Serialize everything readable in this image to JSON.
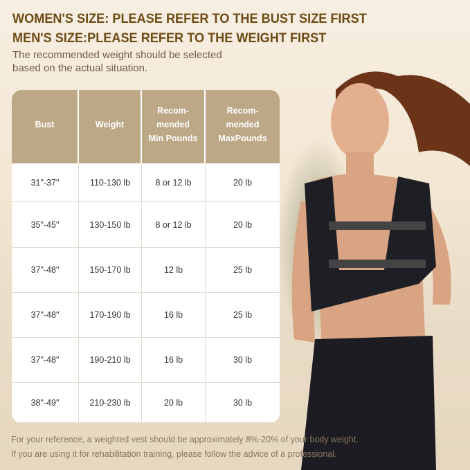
{
  "heading": {
    "line1": "WOMEN'S SIZE: PLEASE REFER TO THE BUST SIZE FIRST",
    "line2": "MEN'S SIZE:PLEASE REFER TO THE WEIGHT FIRST",
    "subtitle": "The recommended weight should be selected based on the actual situation."
  },
  "table": {
    "headers": [
      "Bust",
      "Weight",
      "Recom-\nmended\nMin Pounds",
      "Recom-\nmended\nMaxPounds"
    ],
    "rows": [
      [
        "31\"-37\"",
        "110-130 lb",
        "8 or 12 lb",
        "20 lb"
      ],
      [
        "35\"-45\"",
        "130-150 lb",
        "8 or 12 lb",
        "20 lb"
      ],
      [
        "37\"-48\"",
        "150-170 lb",
        "12 lb",
        "25 lb"
      ],
      [
        "37\"-48\"",
        "170-190 lb",
        "16 lb",
        "25 lb"
      ],
      [
        "37\"-48\"",
        "190-210 lb",
        "16 lb",
        "30 lb"
      ],
      [
        "38\"-49\"",
        "210-230 lb",
        "20 lb",
        "30 lb"
      ]
    ]
  },
  "footer": {
    "line1": "For your reference, a weighted vest should be approximately 8%-20% of your body weight.",
    "line2": "If you are using it for rehabilitation training, please follow the advice of a professional."
  },
  "colors": {
    "heading": "#6e4b16",
    "table_header": "#bca786",
    "vest": "#1e1f24"
  }
}
